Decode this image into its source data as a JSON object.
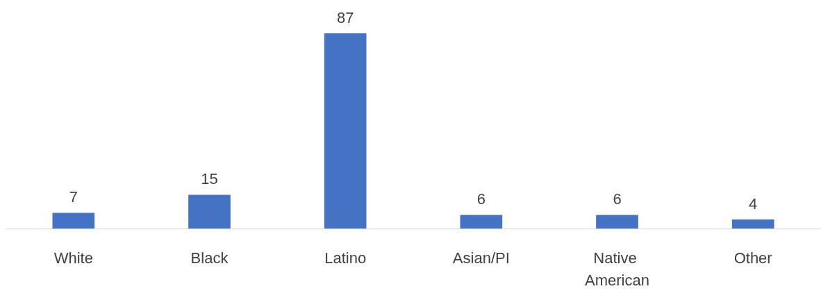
{
  "chart_data": {
    "type": "bar",
    "categories": [
      "White",
      "Black",
      "Latino",
      "Asian/PI",
      "Native American",
      "Other"
    ],
    "values": [
      7,
      15,
      87,
      6,
      6,
      4
    ],
    "color": "#4472c4",
    "data_labels": true
  }
}
